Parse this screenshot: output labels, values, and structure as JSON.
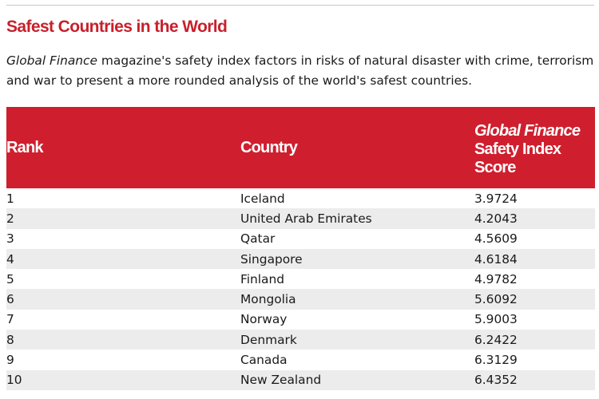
{
  "title": "Safest Countries in the World",
  "intro": {
    "italic_lead": "Global Finance",
    "text": " magazine's safety index factors in risks of natural disaster with crime, terrorism and war to present a more rounded analysis of the world's safest countries."
  },
  "table": {
    "headers": {
      "rank": "Rank",
      "country": "Country",
      "score_line1": "Global Finance",
      "score_line2": "Safety Index",
      "score_line3": "Score"
    },
    "rows": [
      {
        "rank": "1",
        "country": "Iceland",
        "score": "3.9724"
      },
      {
        "rank": "2",
        "country": "United Arab Emirates",
        "score": "4.2043"
      },
      {
        "rank": "3",
        "country": "Qatar",
        "score": "4.5609"
      },
      {
        "rank": "4",
        "country": "Singapore",
        "score": "4.6184"
      },
      {
        "rank": "5",
        "country": "Finland",
        "score": "4.9782"
      },
      {
        "rank": "6",
        "country": "Mongolia",
        "score": "5.6092"
      },
      {
        "rank": "7",
        "country": "Norway",
        "score": "5.9003"
      },
      {
        "rank": "8",
        "country": "Denmark",
        "score": "6.2422"
      },
      {
        "rank": "9",
        "country": "Canada",
        "score": "6.3129"
      },
      {
        "rank": "10",
        "country": "New Zealand",
        "score": "6.4352"
      }
    ]
  },
  "colors": {
    "accent": "#cf1f2e",
    "title": "#c8202b",
    "stripe": "#ececec"
  }
}
